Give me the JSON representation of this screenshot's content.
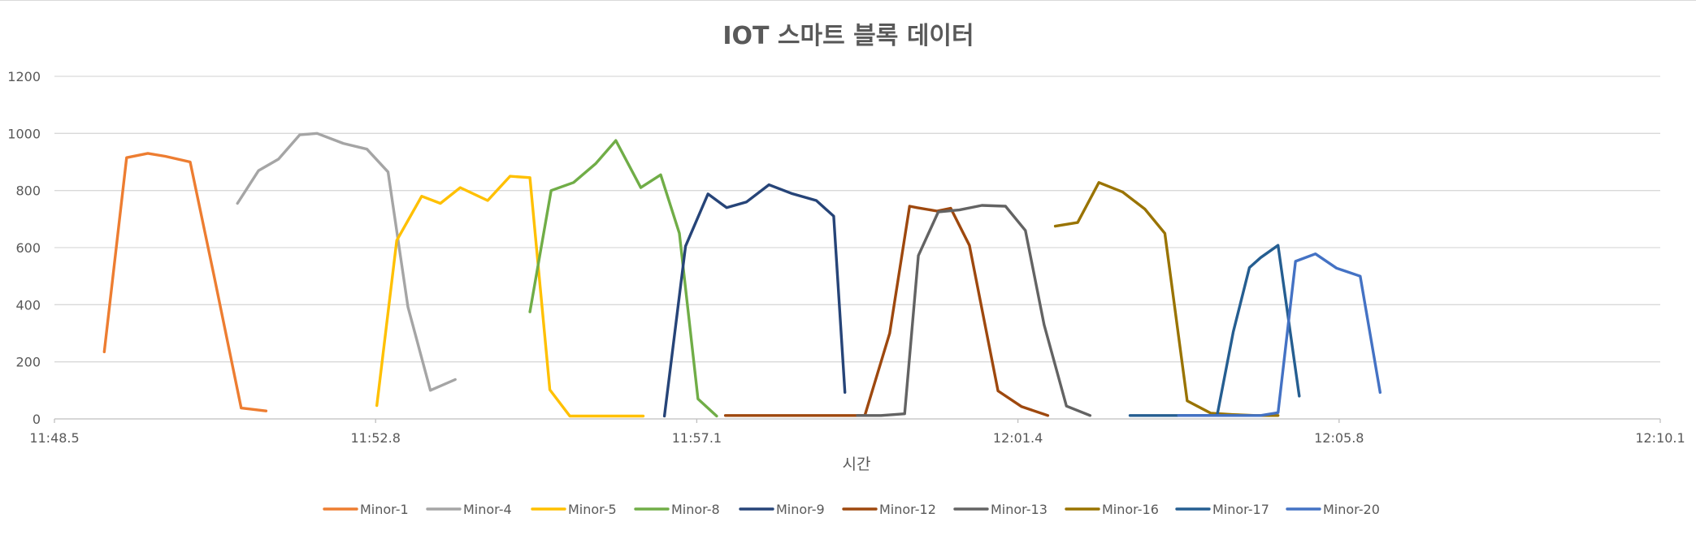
{
  "chart_data": {
    "type": "line",
    "title": "IOT 스마트 블록 데이터",
    "xlabel": "시간",
    "ylabel": "",
    "x_ticks": [
      "11:48.5",
      "11:52.8",
      "11:57.1",
      "12:01.4",
      "12:05.8",
      "12:10.1"
    ],
    "y_ticks": [
      "0",
      "200",
      "400",
      "600",
      "800",
      "1000",
      "1200"
    ],
    "xlim": [
      0,
      1290
    ],
    "ylim": [
      0,
      1200
    ],
    "grid": true,
    "legend_position": "bottom",
    "series": [
      {
        "name": "Minor-1",
        "color": "#ED7D31",
        "x": [
          40,
          58,
          75,
          89,
          109,
          128,
          150,
          170
        ],
        "y": [
          235,
          915,
          930,
          920,
          900,
          505,
          38,
          28
        ]
      },
      {
        "name": "Minor-4",
        "color": "#A5A5A5",
        "x": [
          147,
          164,
          180,
          197,
          211,
          232,
          251,
          268,
          284,
          302,
          322
        ],
        "y": [
          755,
          870,
          910,
          995,
          1000,
          965,
          945,
          865,
          392,
          100,
          138
        ]
      },
      {
        "name": "Minor-5",
        "color": "#FFC000",
        "x": [
          259,
          275,
          295,
          310,
          326,
          348,
          366,
          382,
          398,
          414,
          434,
          455,
          473
        ],
        "y": [
          47,
          625,
          780,
          755,
          810,
          765,
          850,
          845,
          102,
          10,
          10,
          10,
          10
        ]
      },
      {
        "name": "Minor-8",
        "color": "#70AD47",
        "x": [
          382,
          399,
          417,
          435,
          451,
          471,
          487,
          502,
          517,
          532
        ],
        "y": [
          375,
          800,
          828,
          895,
          975,
          810,
          855,
          650,
          70,
          10
        ]
      },
      {
        "name": "Minor-9",
        "color": "#264478",
        "x": [
          490,
          507,
          525,
          540,
          556,
          574,
          592,
          612,
          626,
          635
        ],
        "y": [
          10,
          605,
          788,
          740,
          760,
          820,
          790,
          765,
          710,
          93
        ]
      },
      {
        "name": "Minor-12",
        "color": "#9E480E",
        "x": [
          539,
          557,
          578,
          594,
          612,
          629,
          634,
          651,
          671,
          687,
          693,
          709,
          720,
          735,
          758,
          777,
          798
        ],
        "y": [
          12,
          12,
          12,
          12,
          12,
          12,
          12,
          12,
          300,
          745,
          740,
          728,
          738,
          608,
          98,
          43,
          12
        ]
      },
      {
        "name": "Minor-13",
        "color": "#636363",
        "x": [
          645,
          664,
          683,
          694,
          710,
          727,
          745,
          764,
          780,
          795,
          813,
          832
        ],
        "y": [
          12,
          12,
          18,
          572,
          725,
          732,
          748,
          745,
          660,
          330,
          45,
          12
        ]
      },
      {
        "name": "Minor-16",
        "color": "#997300",
        "x": [
          804,
          822,
          839,
          858,
          876,
          892,
          910,
          929,
          947,
          965,
          983
        ],
        "y": [
          675,
          688,
          828,
          795,
          735,
          650,
          63,
          20,
          15,
          12,
          12
        ]
      },
      {
        "name": "Minor-17",
        "color": "#255E91",
        "x": [
          864,
          882,
          900,
          916,
          934,
          947,
          960,
          969,
          983,
          1000
        ],
        "y": [
          12,
          12,
          12,
          12,
          12,
          305,
          530,
          565,
          608,
          80
        ]
      },
      {
        "name": "Minor-20",
        "color": "#4472C4",
        "x": [
          903,
          921,
          939,
          955,
          969,
          983,
          997,
          1013,
          1030,
          1049,
          1065
        ],
        "y": [
          12,
          12,
          12,
          12,
          12,
          22,
          552,
          578,
          528,
          500,
          93
        ]
      }
    ]
  }
}
